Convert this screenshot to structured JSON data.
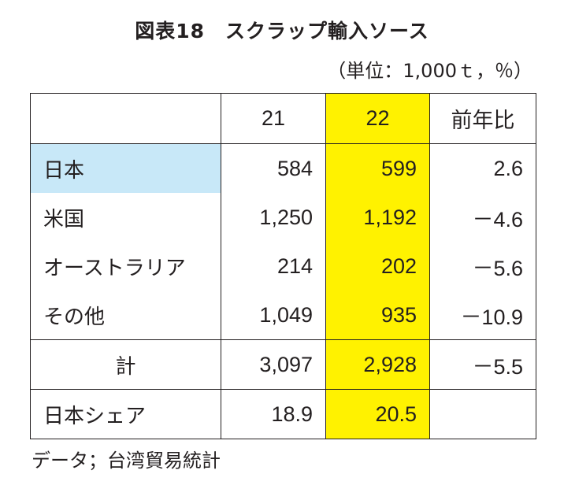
{
  "title": "図表18　スクラップ輸入ソース",
  "unit": "（単位：1,000ｔ，％）",
  "colors": {
    "highlight_column": "#fff200",
    "highlight_row_label": "#c8e8f8"
  },
  "table": {
    "headers": [
      "",
      "21",
      "22",
      "前年比"
    ],
    "rows": [
      {
        "label": "日本",
        "v21": "584",
        "v22": "599",
        "yoy": "2.6"
      },
      {
        "label": "米国",
        "v21": "1,250",
        "v22": "1,192",
        "yoy": "－4.6"
      },
      {
        "label": "オーストラリア",
        "v21": "214",
        "v22": "202",
        "yoy": "－5.6"
      },
      {
        "label": "その他",
        "v21": "1,049",
        "v22": "935",
        "yoy": "－10.9"
      },
      {
        "label": "計",
        "v21": "3,097",
        "v22": "2,928",
        "yoy": "－5.5"
      },
      {
        "label": "日本シェア",
        "v21": "18.9",
        "v22": "20.5",
        "yoy": ""
      }
    ]
  },
  "source": "データ；台湾貿易統計"
}
